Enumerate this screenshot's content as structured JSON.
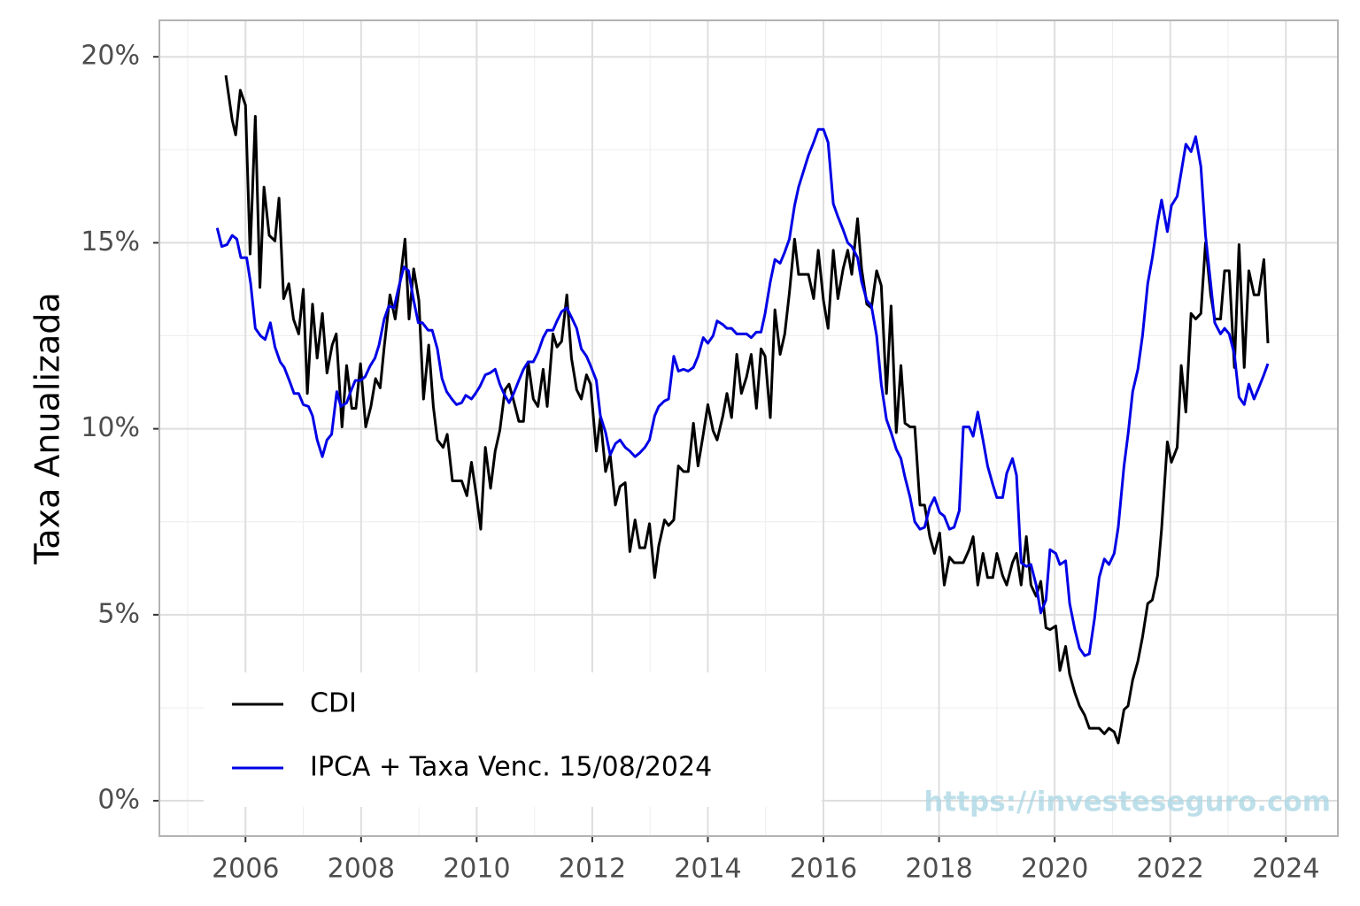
{
  "chart_data": {
    "type": "line",
    "ylabel": "Taxa Anualizada",
    "watermark": "https://investeseguro.com",
    "xlim": [
      2004.51,
      2024.9
    ],
    "ylim": [
      -0.95,
      20.98
    ],
    "xticks": [
      2006,
      2008,
      2010,
      2012,
      2014,
      2016,
      2018,
      2020,
      2022,
      2024
    ],
    "yticks": [
      {
        "value": 0,
        "label": "0%"
      },
      {
        "value": 5,
        "label": "5%"
      },
      {
        "value": 10,
        "label": "10%"
      },
      {
        "value": 15,
        "label": "15%"
      },
      {
        "value": 20,
        "label": "20%"
      }
    ],
    "grid": true,
    "legend": "bottom-left",
    "series": [
      {
        "name": "CDI",
        "color": "#000000",
        "x": [
          2005.66,
          2005.77,
          2005.83,
          2005.91,
          2006.0,
          2006.08,
          2006.17,
          2006.25,
          2006.32,
          2006.41,
          2006.51,
          2006.58,
          2006.66,
          2006.75,
          2006.83,
          2006.92,
          2007.0,
          2007.07,
          2007.16,
          2007.24,
          2007.33,
          2007.41,
          2007.5,
          2007.57,
          2007.67,
          2007.75,
          2007.84,
          2007.91,
          2007.99,
          2008.08,
          2008.17,
          2008.25,
          2008.33,
          2008.4,
          2008.5,
          2008.59,
          2008.67,
          2008.76,
          2008.83,
          2008.91,
          2009.0,
          2009.08,
          2009.17,
          2009.25,
          2009.32,
          2009.42,
          2009.49,
          2009.58,
          2009.66,
          2009.74,
          2009.83,
          2009.91,
          2010.0,
          2010.07,
          2010.15,
          2010.24,
          2010.32,
          2010.4,
          2010.49,
          2010.56,
          2010.64,
          2010.73,
          2010.81,
          2010.89,
          2010.98,
          2011.06,
          2011.15,
          2011.22,
          2011.32,
          2011.39,
          2011.47,
          2011.56,
          2011.64,
          2011.73,
          2011.81,
          2011.9,
          2011.97,
          2012.07,
          2012.14,
          2012.23,
          2012.31,
          2012.4,
          2012.48,
          2012.57,
          2012.65,
          2012.74,
          2012.82,
          2012.91,
          2012.99,
          2013.08,
          2013.15,
          2013.25,
          2013.32,
          2013.41,
          2013.49,
          2013.58,
          2013.66,
          2013.75,
          2013.83,
          2013.92,
          2014.0,
          2014.09,
          2014.16,
          2014.26,
          2014.33,
          2014.41,
          2014.5,
          2014.58,
          2014.67,
          2014.75,
          2014.84,
          2014.92,
          2014.99,
          2015.08,
          2015.16,
          2015.25,
          2015.33,
          2015.41,
          2015.5,
          2015.57,
          2015.67,
          2015.74,
          2015.83,
          2015.91,
          2016.0,
          2016.08,
          2016.17,
          2016.25,
          2016.34,
          2016.42,
          2016.49,
          2016.59,
          2016.66,
          2016.75,
          2016.83,
          2016.92,
          2017.0,
          2017.09,
          2017.17,
          2017.26,
          2017.34,
          2017.41,
          2017.5,
          2017.58,
          2017.67,
          2017.75,
          2017.84,
          2017.92,
          2018.01,
          2018.09,
          2018.18,
          2018.26,
          2018.35,
          2018.42,
          2018.52,
          2018.59,
          2018.67,
          2018.76,
          2018.84,
          2018.93,
          2019.0,
          2019.1,
          2019.17,
          2019.27,
          2019.34,
          2019.42,
          2019.51,
          2019.59,
          2019.68,
          2019.76,
          2019.85,
          2019.92,
          2020.02,
          2020.09,
          2020.19,
          2020.26,
          2020.35,
          2020.43,
          2020.52,
          2020.6,
          2020.69,
          2020.77,
          2020.86,
          2020.94,
          2021.03,
          2021.1,
          2021.2,
          2021.27,
          2021.35,
          2021.44,
          2021.52,
          2021.61,
          2021.69,
          2021.78,
          2021.85,
          2021.95,
          2022.02,
          2022.12,
          2022.19,
          2022.27,
          2022.36,
          2022.44,
          2022.53,
          2022.61,
          2022.7,
          2022.77,
          2022.87,
          2022.94,
          2023.02,
          2023.11,
          2023.19,
          2023.28,
          2023.36,
          2023.45,
          2023.53,
          2023.62,
          2023.69
        ],
        "values": [
          19.5,
          18.3,
          17.9,
          19.1,
          18.7,
          14.7,
          18.4,
          13.8,
          16.5,
          15.2,
          15.05,
          16.2,
          13.5,
          13.9,
          12.95,
          12.55,
          13.75,
          10.95,
          13.35,
          11.9,
          13.1,
          11.5,
          12.25,
          12.55,
          10.05,
          11.7,
          10.55,
          10.55,
          11.75,
          10.05,
          10.6,
          11.35,
          11.1,
          12.2,
          13.6,
          12.95,
          13.9,
          15.1,
          12.95,
          14.3,
          13.45,
          10.8,
          12.25,
          10.6,
          9.7,
          9.5,
          9.85,
          8.6,
          8.6,
          8.6,
          8.2,
          9.1,
          8.15,
          7.3,
          9.5,
          8.4,
          9.4,
          9.95,
          11.05,
          11.2,
          10.75,
          10.2,
          10.2,
          11.8,
          10.8,
          10.6,
          11.6,
          10.6,
          12.55,
          12.2,
          12.35,
          13.6,
          11.9,
          11.05,
          10.8,
          11.45,
          11.2,
          9.4,
          10.3,
          8.85,
          9.3,
          7.95,
          8.45,
          8.55,
          6.7,
          7.55,
          6.8,
          6.8,
          7.45,
          6.0,
          6.85,
          7.55,
          7.4,
          7.55,
          9.0,
          8.85,
          8.85,
          10.15,
          9.0,
          9.85,
          10.65,
          9.95,
          9.7,
          10.35,
          10.95,
          10.3,
          12.0,
          10.95,
          11.4,
          12.0,
          10.55,
          12.15,
          11.95,
          10.3,
          13.2,
          12.0,
          12.55,
          13.65,
          15.1,
          14.15,
          14.15,
          14.15,
          13.5,
          14.8,
          13.45,
          12.7,
          14.8,
          13.5,
          14.3,
          14.8,
          14.15,
          15.65,
          14.3,
          13.35,
          13.25,
          14.25,
          13.85,
          10.95,
          13.3,
          9.9,
          11.7,
          10.15,
          10.05,
          10.05,
          7.95,
          7.95,
          7.1,
          6.65,
          7.2,
          5.8,
          6.55,
          6.4,
          6.4,
          6.4,
          6.75,
          7.1,
          5.8,
          6.65,
          6.0,
          6.0,
          6.65,
          6.05,
          5.8,
          6.4,
          6.65,
          5.8,
          7.1,
          5.8,
          5.5,
          5.9,
          4.65,
          4.6,
          4.7,
          3.5,
          4.15,
          3.4,
          2.9,
          2.55,
          2.3,
          1.95,
          1.95,
          1.95,
          1.8,
          1.95,
          1.85,
          1.55,
          2.45,
          2.55,
          3.25,
          3.75,
          4.4,
          5.3,
          5.4,
          6.05,
          7.3,
          9.65,
          9.1,
          9.5,
          11.7,
          10.45,
          13.1,
          12.95,
          13.1,
          15.0,
          13.6,
          12.95,
          12.95,
          14.25,
          14.25,
          11.65,
          14.95,
          11.65,
          14.25,
          13.6,
          13.6,
          14.55,
          12.3
        ]
      },
      {
        "name": "IPCA + Taxa Venc. 15/08/2024",
        "color": "#0000e6",
        "x": [
          2005.51,
          2005.59,
          2005.68,
          2005.77,
          2005.85,
          2005.92,
          2006.02,
          2006.09,
          2006.17,
          2006.26,
          2006.34,
          2006.43,
          2006.51,
          2006.6,
          2006.67,
          2006.77,
          2006.84,
          2006.92,
          2007.0,
          2007.09,
          2007.16,
          2007.24,
          2007.33,
          2007.41,
          2007.49,
          2007.58,
          2007.65,
          2007.75,
          2007.82,
          2007.9,
          2007.99,
          2008.07,
          2008.16,
          2008.24,
          2008.31,
          2008.4,
          2008.48,
          2008.57,
          2008.65,
          2008.74,
          2008.82,
          2008.91,
          2008.99,
          2009.06,
          2009.16,
          2009.23,
          2009.32,
          2009.4,
          2009.48,
          2009.57,
          2009.65,
          2009.74,
          2009.81,
          2009.91,
          2009.98,
          2010.06,
          2010.15,
          2010.23,
          2010.32,
          2010.4,
          2010.47,
          2010.56,
          2010.64,
          2010.73,
          2010.81,
          2010.89,
          2010.98,
          2011.06,
          2011.15,
          2011.22,
          2011.32,
          2011.39,
          2011.47,
          2011.56,
          2011.64,
          2011.73,
          2011.81,
          2011.9,
          2011.97,
          2012.07,
          2012.14,
          2012.23,
          2012.31,
          2012.4,
          2012.48,
          2012.57,
          2012.65,
          2012.74,
          2012.82,
          2012.91,
          2012.99,
          2013.08,
          2013.15,
          2013.25,
          2013.32,
          2013.41,
          2013.49,
          2013.58,
          2013.66,
          2013.75,
          2013.83,
          2013.92,
          2014.0,
          2014.09,
          2014.16,
          2014.26,
          2014.33,
          2014.41,
          2014.5,
          2014.58,
          2014.67,
          2014.75,
          2014.84,
          2014.92,
          2014.99,
          2015.08,
          2015.16,
          2015.25,
          2015.33,
          2015.41,
          2015.5,
          2015.57,
          2015.67,
          2015.74,
          2015.83,
          2015.91,
          2016.0,
          2016.08,
          2016.17,
          2016.25,
          2016.34,
          2016.42,
          2016.49,
          2016.59,
          2016.66,
          2016.75,
          2016.83,
          2016.92,
          2017.0,
          2017.09,
          2017.17,
          2017.26,
          2017.34,
          2017.41,
          2017.5,
          2017.58,
          2017.67,
          2017.75,
          2017.84,
          2017.92,
          2018.01,
          2018.09,
          2018.18,
          2018.26,
          2018.35,
          2018.42,
          2018.52,
          2018.59,
          2018.67,
          2018.76,
          2018.84,
          2018.93,
          2019.0,
          2019.1,
          2019.17,
          2019.27,
          2019.34,
          2019.42,
          2019.51,
          2019.59,
          2019.68,
          2019.76,
          2019.85,
          2019.92,
          2020.02,
          2020.09,
          2020.19,
          2020.26,
          2020.35,
          2020.43,
          2020.52,
          2020.6,
          2020.69,
          2020.77,
          2020.86,
          2020.94,
          2021.03,
          2021.1,
          2021.2,
          2021.27,
          2021.35,
          2021.44,
          2021.52,
          2021.61,
          2021.69,
          2021.78,
          2021.85,
          2021.95,
          2022.02,
          2022.12,
          2022.19,
          2022.27,
          2022.36,
          2022.44,
          2022.53,
          2022.61,
          2022.7,
          2022.77,
          2022.87,
          2022.94,
          2023.02,
          2023.11,
          2023.19,
          2023.28,
          2023.36,
          2023.45,
          2023.53,
          2023.62,
          2023.69
        ],
        "values": [
          15.4,
          14.9,
          14.95,
          15.2,
          15.1,
          14.6,
          14.6,
          13.9,
          12.7,
          12.5,
          12.4,
          12.85,
          12.2,
          11.8,
          11.65,
          11.25,
          10.95,
          10.95,
          10.65,
          10.6,
          10.35,
          9.7,
          9.25,
          9.7,
          9.85,
          11.0,
          10.6,
          10.7,
          11.0,
          11.3,
          11.3,
          11.4,
          11.7,
          11.9,
          12.25,
          12.95,
          13.3,
          13.25,
          13.8,
          14.35,
          14.25,
          13.45,
          12.85,
          12.85,
          12.65,
          12.65,
          12.15,
          11.35,
          11.0,
          10.8,
          10.65,
          10.7,
          10.9,
          10.8,
          10.95,
          11.15,
          11.45,
          11.5,
          11.6,
          11.2,
          10.95,
          10.7,
          10.95,
          11.3,
          11.6,
          11.8,
          11.8,
          12.05,
          12.45,
          12.65,
          12.65,
          12.9,
          13.15,
          13.25,
          13.0,
          12.7,
          12.15,
          11.95,
          11.7,
          11.3,
          10.35,
          9.9,
          9.3,
          9.6,
          9.7,
          9.5,
          9.4,
          9.25,
          9.35,
          9.5,
          9.7,
          10.35,
          10.6,
          10.75,
          10.8,
          11.95,
          11.55,
          11.6,
          11.55,
          11.65,
          11.95,
          12.45,
          12.3,
          12.5,
          12.9,
          12.8,
          12.7,
          12.7,
          12.55,
          12.55,
          12.55,
          12.45,
          12.6,
          12.6,
          13.1,
          13.95,
          14.55,
          14.45,
          14.75,
          15.1,
          16.0,
          16.5,
          17.0,
          17.35,
          17.7,
          18.05,
          18.05,
          17.7,
          16.05,
          15.7,
          15.35,
          15.0,
          14.9,
          14.6,
          13.95,
          13.45,
          13.3,
          12.5,
          11.2,
          10.25,
          9.9,
          9.45,
          9.2,
          8.7,
          8.15,
          7.5,
          7.3,
          7.35,
          7.9,
          8.15,
          7.75,
          7.65,
          7.3,
          7.35,
          7.8,
          10.05,
          10.05,
          9.8,
          10.45,
          9.7,
          9.0,
          8.5,
          8.15,
          8.15,
          8.8,
          9.2,
          8.75,
          6.4,
          6.3,
          6.35,
          5.8,
          5.05,
          5.4,
          6.75,
          6.65,
          6.35,
          6.45,
          5.3,
          4.6,
          4.1,
          3.9,
          3.95,
          4.9,
          6.0,
          6.5,
          6.35,
          6.65,
          7.35,
          9.0,
          9.85,
          11.0,
          11.6,
          12.5,
          13.9,
          14.6,
          15.55,
          16.15,
          15.3,
          16.0,
          16.25,
          16.9,
          17.65,
          17.45,
          17.85,
          17.05,
          15.2,
          13.9,
          12.85,
          12.55,
          12.7,
          12.55,
          12.0,
          10.85,
          10.65,
          11.2,
          10.8,
          11.1,
          11.45,
          11.75
        ]
      }
    ]
  }
}
